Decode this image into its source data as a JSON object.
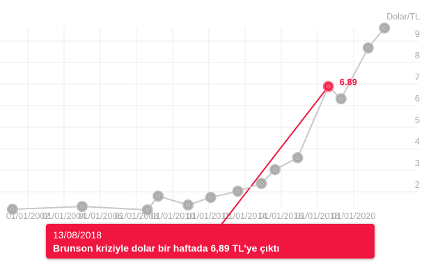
{
  "chart_data": {
    "type": "line",
    "ylabel": "Dolar/TL",
    "ylim": [
      1,
      9.6
    ],
    "yticks": [
      2,
      3,
      4,
      5,
      6,
      7,
      8,
      9
    ],
    "xlim": [
      2001,
      2022
    ],
    "xticks": [
      {
        "year": 2002,
        "label": "01/01/2002"
      },
      {
        "year": 2004,
        "label": "01/01/2004"
      },
      {
        "year": 2006,
        "label": "01/01/2006"
      },
      {
        "year": 2008,
        "label": "01/01/2008"
      },
      {
        "year": 2010,
        "label": "01/01/2010"
      },
      {
        "year": 2012,
        "label": "01/01/2012"
      },
      {
        "year": 2014,
        "label": "01/01/2014"
      },
      {
        "year": 2016,
        "label": "01/01/2016"
      },
      {
        "year": 2018,
        "label": "01/01/2018"
      },
      {
        "year": 2020,
        "label": "01/01/2020"
      }
    ],
    "grid": true,
    "series": [
      {
        "name": "Dolar/TL",
        "color": "#c8c8c8",
        "points": [
          {
            "x": 2001.15,
            "y": 1.19
          },
          {
            "x": 2005.0,
            "y": 1.32
          },
          {
            "x": 2008.6,
            "y": 1.16
          },
          {
            "x": 2009.2,
            "y": 1.8
          },
          {
            "x": 2010.85,
            "y": 1.39
          },
          {
            "x": 2012.1,
            "y": 1.74
          },
          {
            "x": 2013.6,
            "y": 2.03
          },
          {
            "x": 2014.9,
            "y": 2.39
          },
          {
            "x": 2015.65,
            "y": 3.03
          },
          {
            "x": 2016.9,
            "y": 3.58
          },
          {
            "x": 2018.6,
            "y": 6.89
          },
          {
            "x": 2019.3,
            "y": 6.32
          },
          {
            "x": 2020.8,
            "y": 8.68
          },
          {
            "x": 2021.7,
            "y": 9.6
          }
        ]
      }
    ],
    "highlight": {
      "index": 10,
      "label": "6.89",
      "color": "#f0163f"
    },
    "annotation": {
      "date": "13/08/2018",
      "text": "Brunson kriziyle dolar bir haftada 6,89 TL’ye çıktı"
    }
  }
}
